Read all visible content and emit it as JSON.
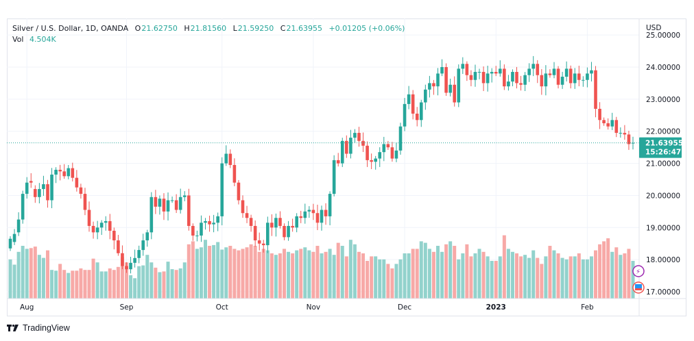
{
  "header": {
    "symbol": "Silver / U.S. Dollar, 1D, OANDA",
    "open_label": "O",
    "open": "21.62750",
    "high_label": "H",
    "high": "21.81560",
    "low_label": "L",
    "low": "21.59250",
    "close_label": "C",
    "close": "21.63955",
    "change": "+0.01205 (+0.06%)",
    "vol_label": "Vol",
    "vol": "4.504K"
  },
  "price_axis": {
    "currency": "USD"
  },
  "last_price": {
    "price": "21.63955",
    "countdown": "15:26:47"
  },
  "brand": {
    "name": "TradingView"
  },
  "colors": {
    "up": "#26a69a",
    "down": "#ef5350",
    "vol_up": "#92d2cc",
    "vol_down": "#f7a9a7",
    "grid": "#f0f3fa",
    "text": "#131722"
  },
  "chart_data": {
    "type": "candlestick",
    "title": "Silver / U.S. Dollar, 1D, OANDA",
    "ylabel": "USD",
    "ylim": [
      16.85,
      25.2
    ],
    "yticks": [
      "25.00000",
      "24.00000",
      "23.00000",
      "22.00000",
      "21.00000",
      "20.00000",
      "19.00000",
      "18.00000",
      "17.00000"
    ],
    "xticks": [
      {
        "label": "Aug",
        "index": 4
      },
      {
        "label": "Sep",
        "index": 28
      },
      {
        "label": "Oct",
        "index": 51
      },
      {
        "label": "Nov",
        "index": 73
      },
      {
        "label": "Dec",
        "index": 95
      },
      {
        "label": "2023",
        "index": 117
      },
      {
        "label": "Feb",
        "index": 139
      }
    ],
    "last_close": 21.63955,
    "closes": [
      18.65,
      18.8,
      19.25,
      20.05,
      20.4,
      20.4,
      19.95,
      20.2,
      20.35,
      19.85,
      20.65,
      20.8,
      20.75,
      20.6,
      20.85,
      20.55,
      20.25,
      20.05,
      19.55,
      19.05,
      18.85,
      19.0,
      19.15,
      19.2,
      18.9,
      18.6,
      18.2,
      17.8,
      17.7,
      17.9,
      18.05,
      18.3,
      18.6,
      18.85,
      19.95,
      19.65,
      19.9,
      19.5,
      19.85,
      19.85,
      19.55,
      19.95,
      20.0,
      19.05,
      18.75,
      18.75,
      19.15,
      19.2,
      19.1,
      19.15,
      19.35,
      21.0,
      21.3,
      20.95,
      20.4,
      19.85,
      19.45,
      19.3,
      19.05,
      18.6,
      18.5,
      18.45,
      19.15,
      19.0,
      19.3,
      19.05,
      18.7,
      19.05,
      19.0,
      19.35,
      19.3,
      19.5,
      19.55,
      19.45,
      19.15,
      19.55,
      19.35,
      20.05,
      21.1,
      21.0,
      21.7,
      21.3,
      21.8,
      21.95,
      21.7,
      21.55,
      21.1,
      21.05,
      21.15,
      21.35,
      21.6,
      21.5,
      21.15,
      21.4,
      22.15,
      22.85,
      23.15,
      22.55,
      22.35,
      22.9,
      23.3,
      23.5,
      23.4,
      23.8,
      24.0,
      23.2,
      23.45,
      22.9,
      23.95,
      24.1,
      23.75,
      23.6,
      23.85,
      23.85,
      23.5,
      23.8,
      23.85,
      23.8,
      23.95,
      23.4,
      23.55,
      23.85,
      23.5,
      23.45,
      23.75,
      23.95,
      24.1,
      23.75,
      23.4,
      23.8,
      23.75,
      23.95,
      23.45,
      23.7,
      23.95,
      23.5,
      23.8,
      23.6,
      23.6,
      23.8,
      23.9,
      22.7,
      22.35,
      22.25,
      22.15,
      22.35,
      21.95,
      21.95,
      21.9,
      21.6,
      21.64
    ],
    "opens": [
      18.35,
      18.55,
      18.85,
      19.25,
      20.05,
      20.45,
      20.2,
      19.95,
      20.2,
      20.35,
      19.85,
      20.65,
      20.8,
      20.75,
      20.6,
      20.85,
      20.55,
      20.25,
      20.05,
      19.55,
      19.05,
      18.85,
      19.0,
      19.15,
      19.2,
      18.9,
      18.6,
      18.2,
      17.8,
      17.7,
      17.9,
      18.05,
      18.3,
      18.6,
      18.85,
      19.95,
      19.65,
      19.9,
      19.5,
      19.85,
      19.85,
      19.55,
      19.95,
      20.0,
      19.05,
      18.75,
      18.75,
      19.15,
      19.2,
      19.1,
      19.15,
      19.35,
      21.0,
      21.3,
      20.95,
      20.4,
      19.85,
      19.45,
      19.3,
      19.05,
      18.6,
      18.5,
      18.45,
      19.15,
      19.0,
      19.3,
      19.05,
      18.7,
      19.05,
      19.0,
      19.35,
      19.3,
      19.5,
      19.55,
      19.45,
      19.15,
      19.55,
      19.35,
      20.05,
      21.1,
      21.0,
      21.7,
      21.3,
      21.8,
      21.95,
      21.7,
      21.55,
      21.1,
      21.05,
      21.15,
      21.35,
      21.6,
      21.5,
      21.15,
      21.4,
      22.15,
      22.85,
      23.15,
      22.55,
      22.35,
      22.9,
      23.3,
      23.5,
      23.4,
      23.8,
      24.0,
      23.2,
      23.45,
      22.9,
      23.95,
      24.1,
      23.75,
      23.6,
      23.85,
      23.85,
      23.5,
      23.8,
      23.85,
      23.8,
      23.95,
      23.4,
      23.55,
      23.85,
      23.5,
      23.45,
      23.75,
      23.95,
      24.1,
      23.75,
      23.4,
      23.8,
      23.75,
      23.95,
      23.45,
      23.7,
      23.95,
      23.5,
      23.8,
      23.6,
      23.6,
      23.8,
      23.9,
      22.7,
      22.35,
      22.25,
      22.15,
      22.35,
      21.95,
      21.95,
      21.9,
      21.63
    ],
    "volume_rel": [
      0.52,
      0.45,
      0.62,
      0.7,
      0.66,
      0.67,
      0.69,
      0.58,
      0.54,
      0.64,
      0.38,
      0.37,
      0.46,
      0.38,
      0.34,
      0.37,
      0.37,
      0.4,
      0.38,
      0.38,
      0.53,
      0.48,
      0.36,
      0.36,
      0.4,
      0.38,
      0.42,
      0.55,
      0.48,
      0.31,
      0.27,
      0.43,
      0.44,
      0.58,
      0.48,
      0.41,
      0.35,
      0.36,
      0.49,
      0.39,
      0.38,
      0.4,
      0.48,
      0.72,
      0.76,
      0.66,
      0.68,
      0.78,
      0.7,
      0.71,
      0.75,
      0.65,
      0.68,
      0.7,
      0.66,
      0.64,
      0.66,
      0.68,
      0.72,
      0.7,
      0.62,
      0.66,
      0.64,
      0.6,
      0.58,
      0.6,
      0.66,
      0.62,
      0.6,
      0.64,
      0.66,
      0.68,
      0.64,
      0.62,
      0.7,
      0.6,
      0.62,
      0.66,
      0.58,
      0.74,
      0.7,
      0.56,
      0.78,
      0.72,
      0.62,
      0.6,
      0.5,
      0.56,
      0.56,
      0.52,
      0.52,
      0.46,
      0.4,
      0.46,
      0.52,
      0.6,
      0.6,
      0.66,
      0.66,
      0.76,
      0.74,
      0.66,
      0.62,
      0.7,
      0.62,
      0.72,
      0.76,
      0.7,
      0.52,
      0.6,
      0.72,
      0.56,
      0.6,
      0.66,
      0.62,
      0.56,
      0.5,
      0.5,
      0.56,
      0.84,
      0.66,
      0.62,
      0.6,
      0.56,
      0.58,
      0.54,
      0.64,
      0.54,
      0.46,
      0.56,
      0.7,
      0.64,
      0.6,
      0.54,
      0.52,
      0.56,
      0.56,
      0.6,
      0.52,
      0.52,
      0.56,
      0.64,
      0.72,
      0.76,
      0.8,
      0.62,
      0.68,
      0.58,
      0.6,
      0.66,
      0.5,
      0.72,
      0.54
    ]
  }
}
